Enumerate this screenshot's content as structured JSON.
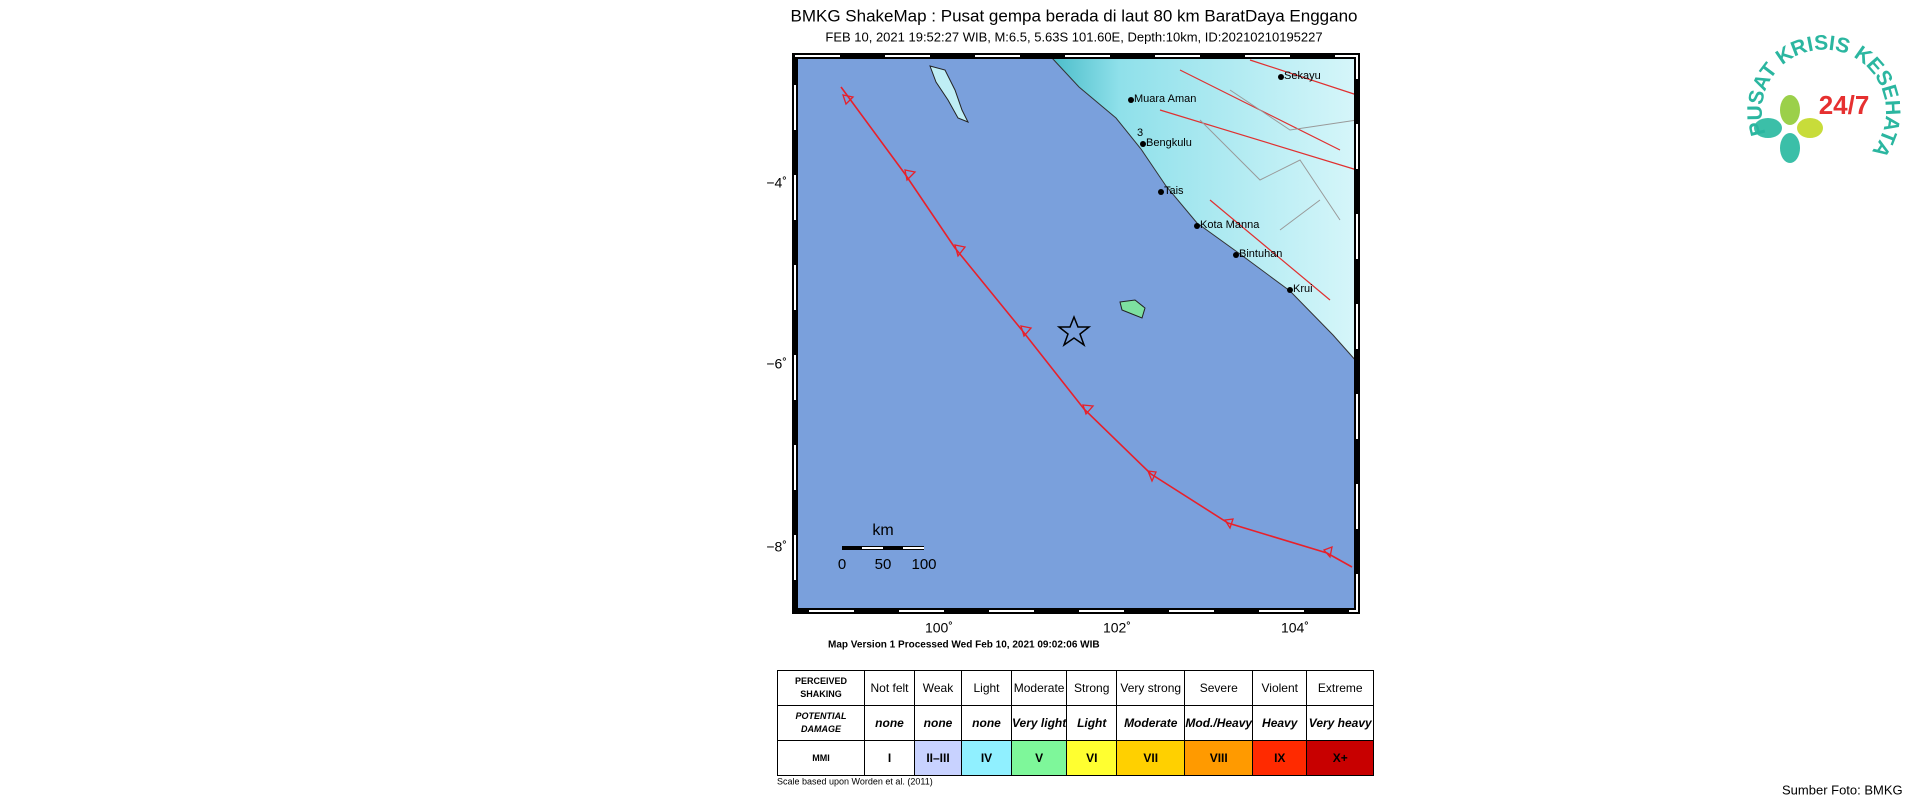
{
  "header": {
    "title": "BMKG ShakeMap : Pusat gempa berada di laut 80 km BaratDaya Enggano",
    "subtitle": "FEB 10, 2021 19:52:27 WIB, M:6.5, 5.63S 101.60E, Depth:10km, ID:20210210195227"
  },
  "map": {
    "lat_labels": [
      "−4˚",
      "−6˚",
      "−8˚"
    ],
    "lon_labels": [
      "100˚",
      "102˚",
      "104˚"
    ],
    "cities": [
      "Muara Aman",
      "Bengkulu",
      "Tais",
      "Kota Manna",
      "Bintuhan",
      "Krui",
      "Sekayu"
    ],
    "contour_label": "3",
    "scale_bar": {
      "unit": "km",
      "ticks": [
        "0",
        "50",
        "100"
      ]
    },
    "version_note": "Map Version 1 Processed Wed Feb 10, 2021 09:02:06 WIB"
  },
  "legend_table": {
    "rows": [
      [
        "PERCEIVED SHAKING",
        "Not felt",
        "Weak",
        "Light",
        "Moderate",
        "Strong",
        "Very strong",
        "Severe",
        "Violent",
        "Extreme"
      ],
      [
        "POTENTIAL DAMAGE",
        "none",
        "none",
        "none",
        "Very light",
        "Light",
        "Moderate",
        "Mod./Heavy",
        "Heavy",
        "Very heavy"
      ],
      [
        "MMI",
        "I",
        "II–III",
        "IV",
        "V",
        "VI",
        "VII",
        "VIII",
        "IX",
        "X+"
      ]
    ]
  },
  "table_note": "Scale based upon Worden et al. (2011)",
  "logo": {
    "name": "PUSAT KRISIS KESEHATAN",
    "hours": "24/7"
  },
  "source": "Sumber Foto: BMKG"
}
